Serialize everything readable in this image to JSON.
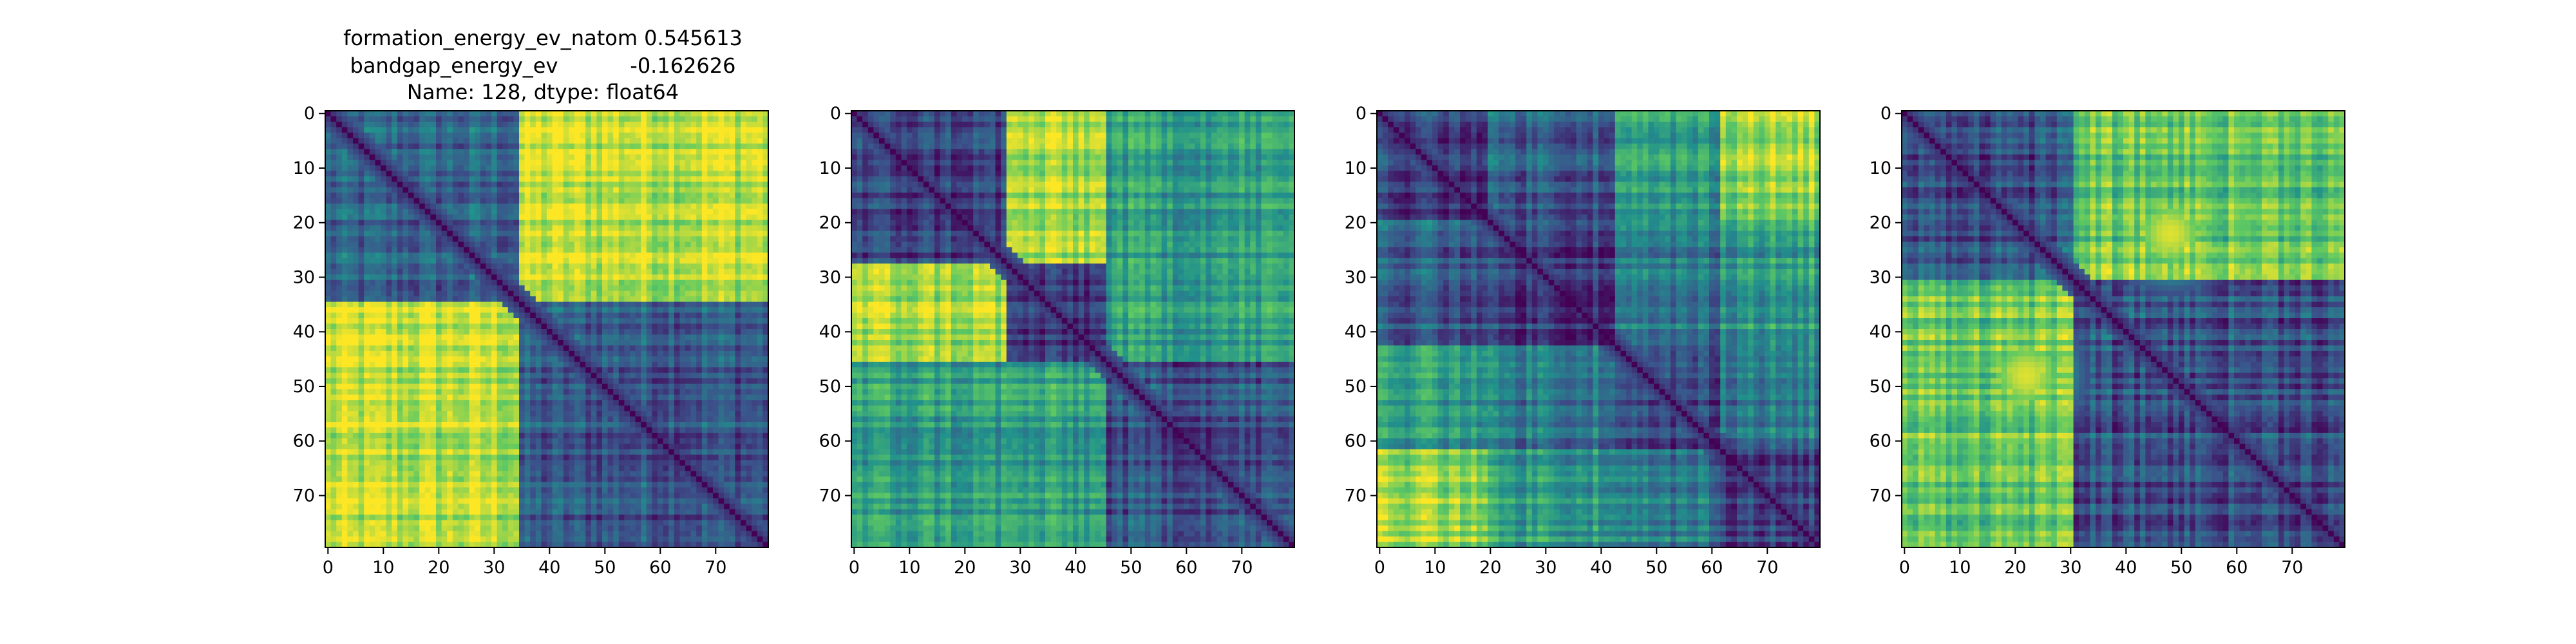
{
  "figure": {
    "title_lines": [
      "formation_energy_ev_natom    0.545613",
      "bandgap_energy_ev           -0.162626",
      "Name: 128, dtype: float64"
    ]
  },
  "colormap": [
    "#440154",
    "#3b528b",
    "#21918c",
    "#5ec962",
    "#fde725"
  ],
  "chart_data": [
    {
      "type": "heatmap",
      "title": "",
      "size": 80,
      "xlim": [
        -0.5,
        79.5
      ],
      "ylim": [
        79.5,
        -0.5
      ],
      "xticks": [
        0,
        10,
        20,
        30,
        40,
        50,
        60,
        70
      ],
      "yticks": [
        0,
        10,
        20,
        30,
        40,
        50,
        60,
        70
      ],
      "blocks": [
        [
          0,
          35
        ],
        [
          35,
          80
        ]
      ],
      "block_values": [
        [
          0.3,
          0.9
        ],
        [
          0.9,
          0.28
        ]
      ],
      "diagonal_value": 0.0
    },
    {
      "type": "heatmap",
      "title": "",
      "size": 80,
      "xlim": [
        -0.5,
        79.5
      ],
      "ylim": [
        79.5,
        -0.5
      ],
      "xticks": [
        0,
        10,
        20,
        30,
        40,
        50,
        60,
        70
      ],
      "yticks": [
        0,
        10,
        20,
        30,
        40,
        50,
        60,
        70
      ],
      "blocks": [
        [
          0,
          28
        ],
        [
          28,
          46
        ],
        [
          46,
          80
        ]
      ],
      "block_values": [
        [
          0.2,
          0.85,
          0.55
        ],
        [
          0.85,
          0.15,
          0.55
        ],
        [
          0.55,
          0.55,
          0.25
        ]
      ],
      "diagonal_value": 0.0
    },
    {
      "type": "heatmap",
      "title": "",
      "size": 80,
      "xlim": [
        -0.5,
        79.5
      ],
      "ylim": [
        79.5,
        -0.5
      ],
      "xticks": [
        0,
        10,
        20,
        30,
        40,
        50,
        60,
        70
      ],
      "yticks": [
        0,
        10,
        20,
        30,
        40,
        50,
        60,
        70
      ],
      "blocks": [
        [
          0,
          20
        ],
        [
          20,
          43
        ],
        [
          43,
          62
        ],
        [
          62,
          80
        ]
      ],
      "block_values": [
        [
          0.2,
          0.3,
          0.55,
          0.85
        ],
        [
          0.3,
          0.2,
          0.4,
          0.55
        ],
        [
          0.55,
          0.4,
          0.2,
          0.4
        ],
        [
          0.85,
          0.55,
          0.4,
          0.2
        ]
      ],
      "diagonal_value": 0.0
    },
    {
      "type": "heatmap",
      "title": "",
      "size": 80,
      "xlim": [
        -0.5,
        79.5
      ],
      "ylim": [
        79.5,
        -0.5
      ],
      "xticks": [
        0,
        10,
        20,
        30,
        40,
        50,
        60,
        70
      ],
      "yticks": [
        0,
        10,
        20,
        30,
        40,
        50,
        60,
        70
      ],
      "blocks": [
        [
          0,
          31
        ],
        [
          31,
          80
        ]
      ],
      "block_values": [
        [
          0.25,
          0.75
        ],
        [
          0.75,
          0.25
        ]
      ],
      "hotspots": [
        {
          "x": 48,
          "y": 22,
          "value": 0.95
        },
        {
          "x": 22,
          "y": 48,
          "value": 0.95
        }
      ],
      "diagonal_value": 0.0
    }
  ]
}
